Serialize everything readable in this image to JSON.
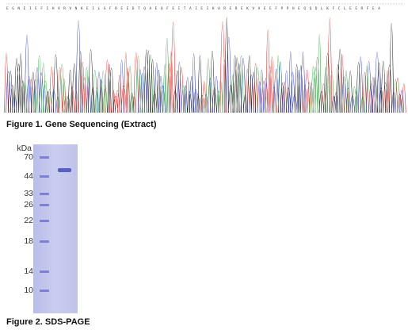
{
  "figure1": {
    "sequence": "E G N E I E F I H V R V N K E I L G F R E E D T Q A E Q F E I T A I E I K A R E R E K V V E E F P P H E Q Q D L K F C L E E R F E A",
    "caption": "Figure 1. Gene Sequencing (Extract)"
  },
  "figure2": {
    "unit": "kDa",
    "markers": [
      "70",
      "44",
      "33",
      "26",
      "22",
      "18",
      "14",
      "10"
    ],
    "caption": "Figure 2. SDS-PAGE"
  }
}
